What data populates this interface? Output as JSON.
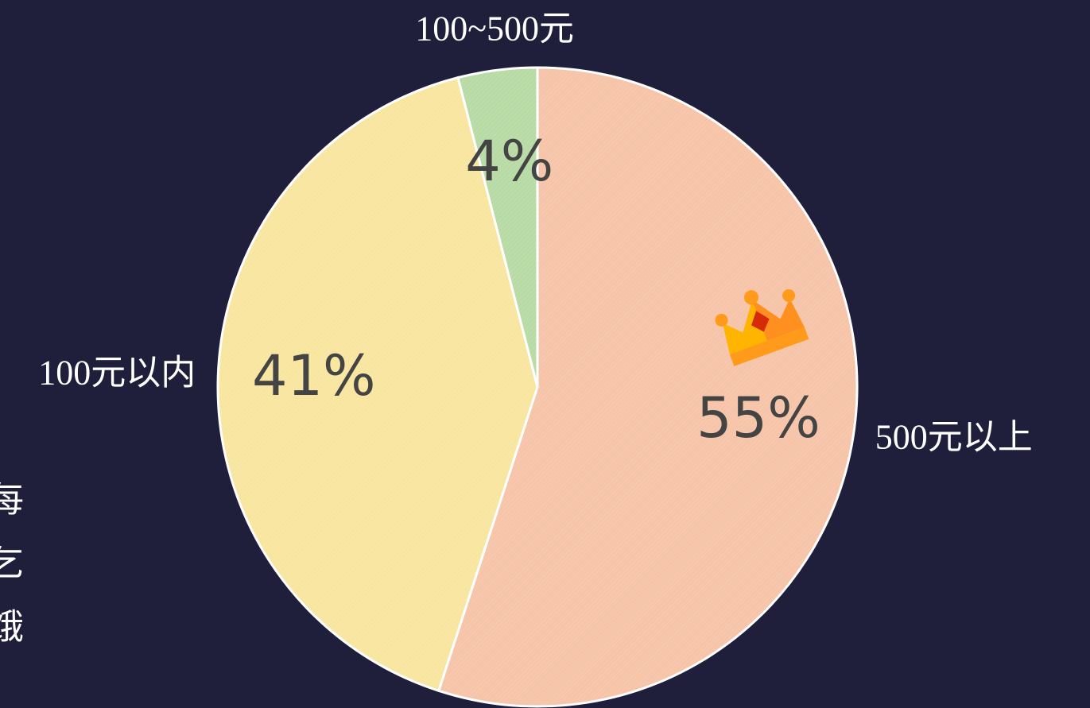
{
  "chart_data": {
    "type": "pie",
    "categories": [
      "500元以上",
      "100元以内",
      "100~500元"
    ],
    "values": [
      55,
      41,
      4
    ],
    "value_labels": [
      "55%",
      "41%",
      "4%"
    ],
    "colors": [
      "#f6c4a8",
      "#f8e6a0",
      "#b8dba6"
    ],
    "side_text": [
      "每",
      "乞",
      "饿"
    ]
  }
}
